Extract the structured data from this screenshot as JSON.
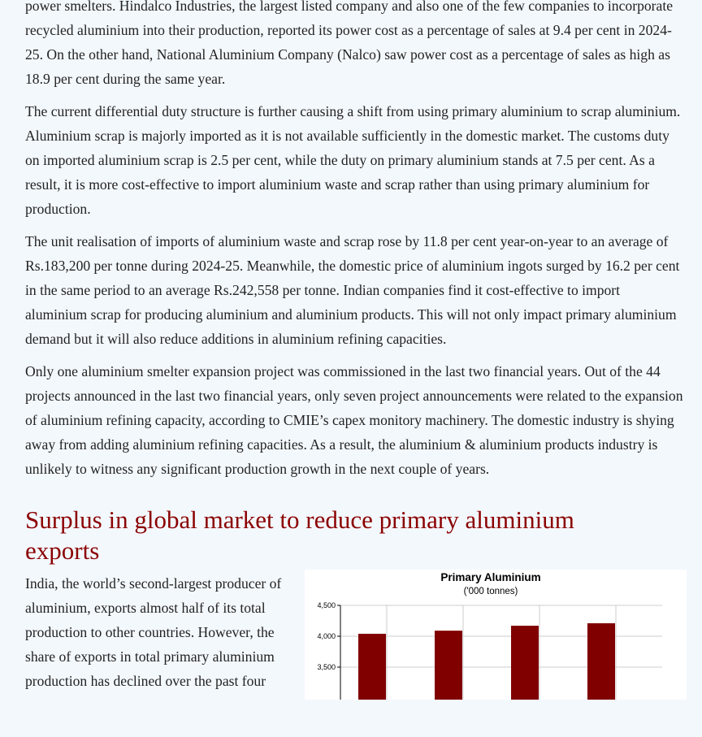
{
  "paragraphs": [
    "power smelters. Hindalco Industries, the largest listed company and also one of the few companies to incorporate recycled aluminium into their production, reported its power cost as a percentage of sales at 9.4 per cent in 2024-25. On the other hand, National Aluminium Company (Nalco) saw power cost as a percentage of sales as high as 18.9 per cent during the same year.",
    "The current differential duty structure is further causing a shift from using primary aluminium to scrap aluminium. Aluminium scrap is majorly imported as it is not available sufficiently in the domestic market. The customs duty on imported aluminium scrap is 2.5 per cent, while the duty on primary aluminium stands at 7.5 per cent. As a result, it is more cost-effective to import aluminium waste and scrap rather than using primary aluminium for production.",
    "The unit realisation of imports of aluminium waste and scrap rose by 11.8 per cent year-on-year to an average of Rs.183,200 per tonne during 2024-25. Meanwhile, the domestic price of aluminium ingots surged by 16.2 per cent in the same period to an average Rs.242,558 per tonne. Indian companies find it cost-effective to import aluminium scrap for producing aluminium and aluminium products. This will not only impact primary aluminium demand but it will also reduce additions in aluminium refining capacities.",
    "Only one aluminium smelter expansion project was commissioned in the last two financial years. Out of the 44 projects announced in the last two financial years, only seven project announcements were related to the expansion of aluminium refining capacity, according to CMIE’s capex monitory machinery. The domestic industry is shying away from adding aluminium refining capacities. As a result, the aluminium & aluminium products industry is unlikely to witness any significant production growth in the next couple of years."
  ],
  "section_heading": "Surplus in global market to reduce primary aluminium exports",
  "section_paragraph": "India, the world’s second-largest producer of aluminium, exports almost half of its total production to other countries. However, the share of exports in total primary aluminium production has declined over the past four",
  "chart_data": {
    "type": "bar",
    "title": "Primary Aluminium",
    "subtitle": "('000 tonnes)",
    "yticks": [
      3500,
      4000,
      4500
    ],
    "ytick_labels": [
      "3,500",
      "4,000",
      "4,500"
    ],
    "ylim_top": 4500,
    "values": [
      4040,
      4090,
      4170,
      4210
    ],
    "bar_color": "#800000",
    "grid": true
  }
}
